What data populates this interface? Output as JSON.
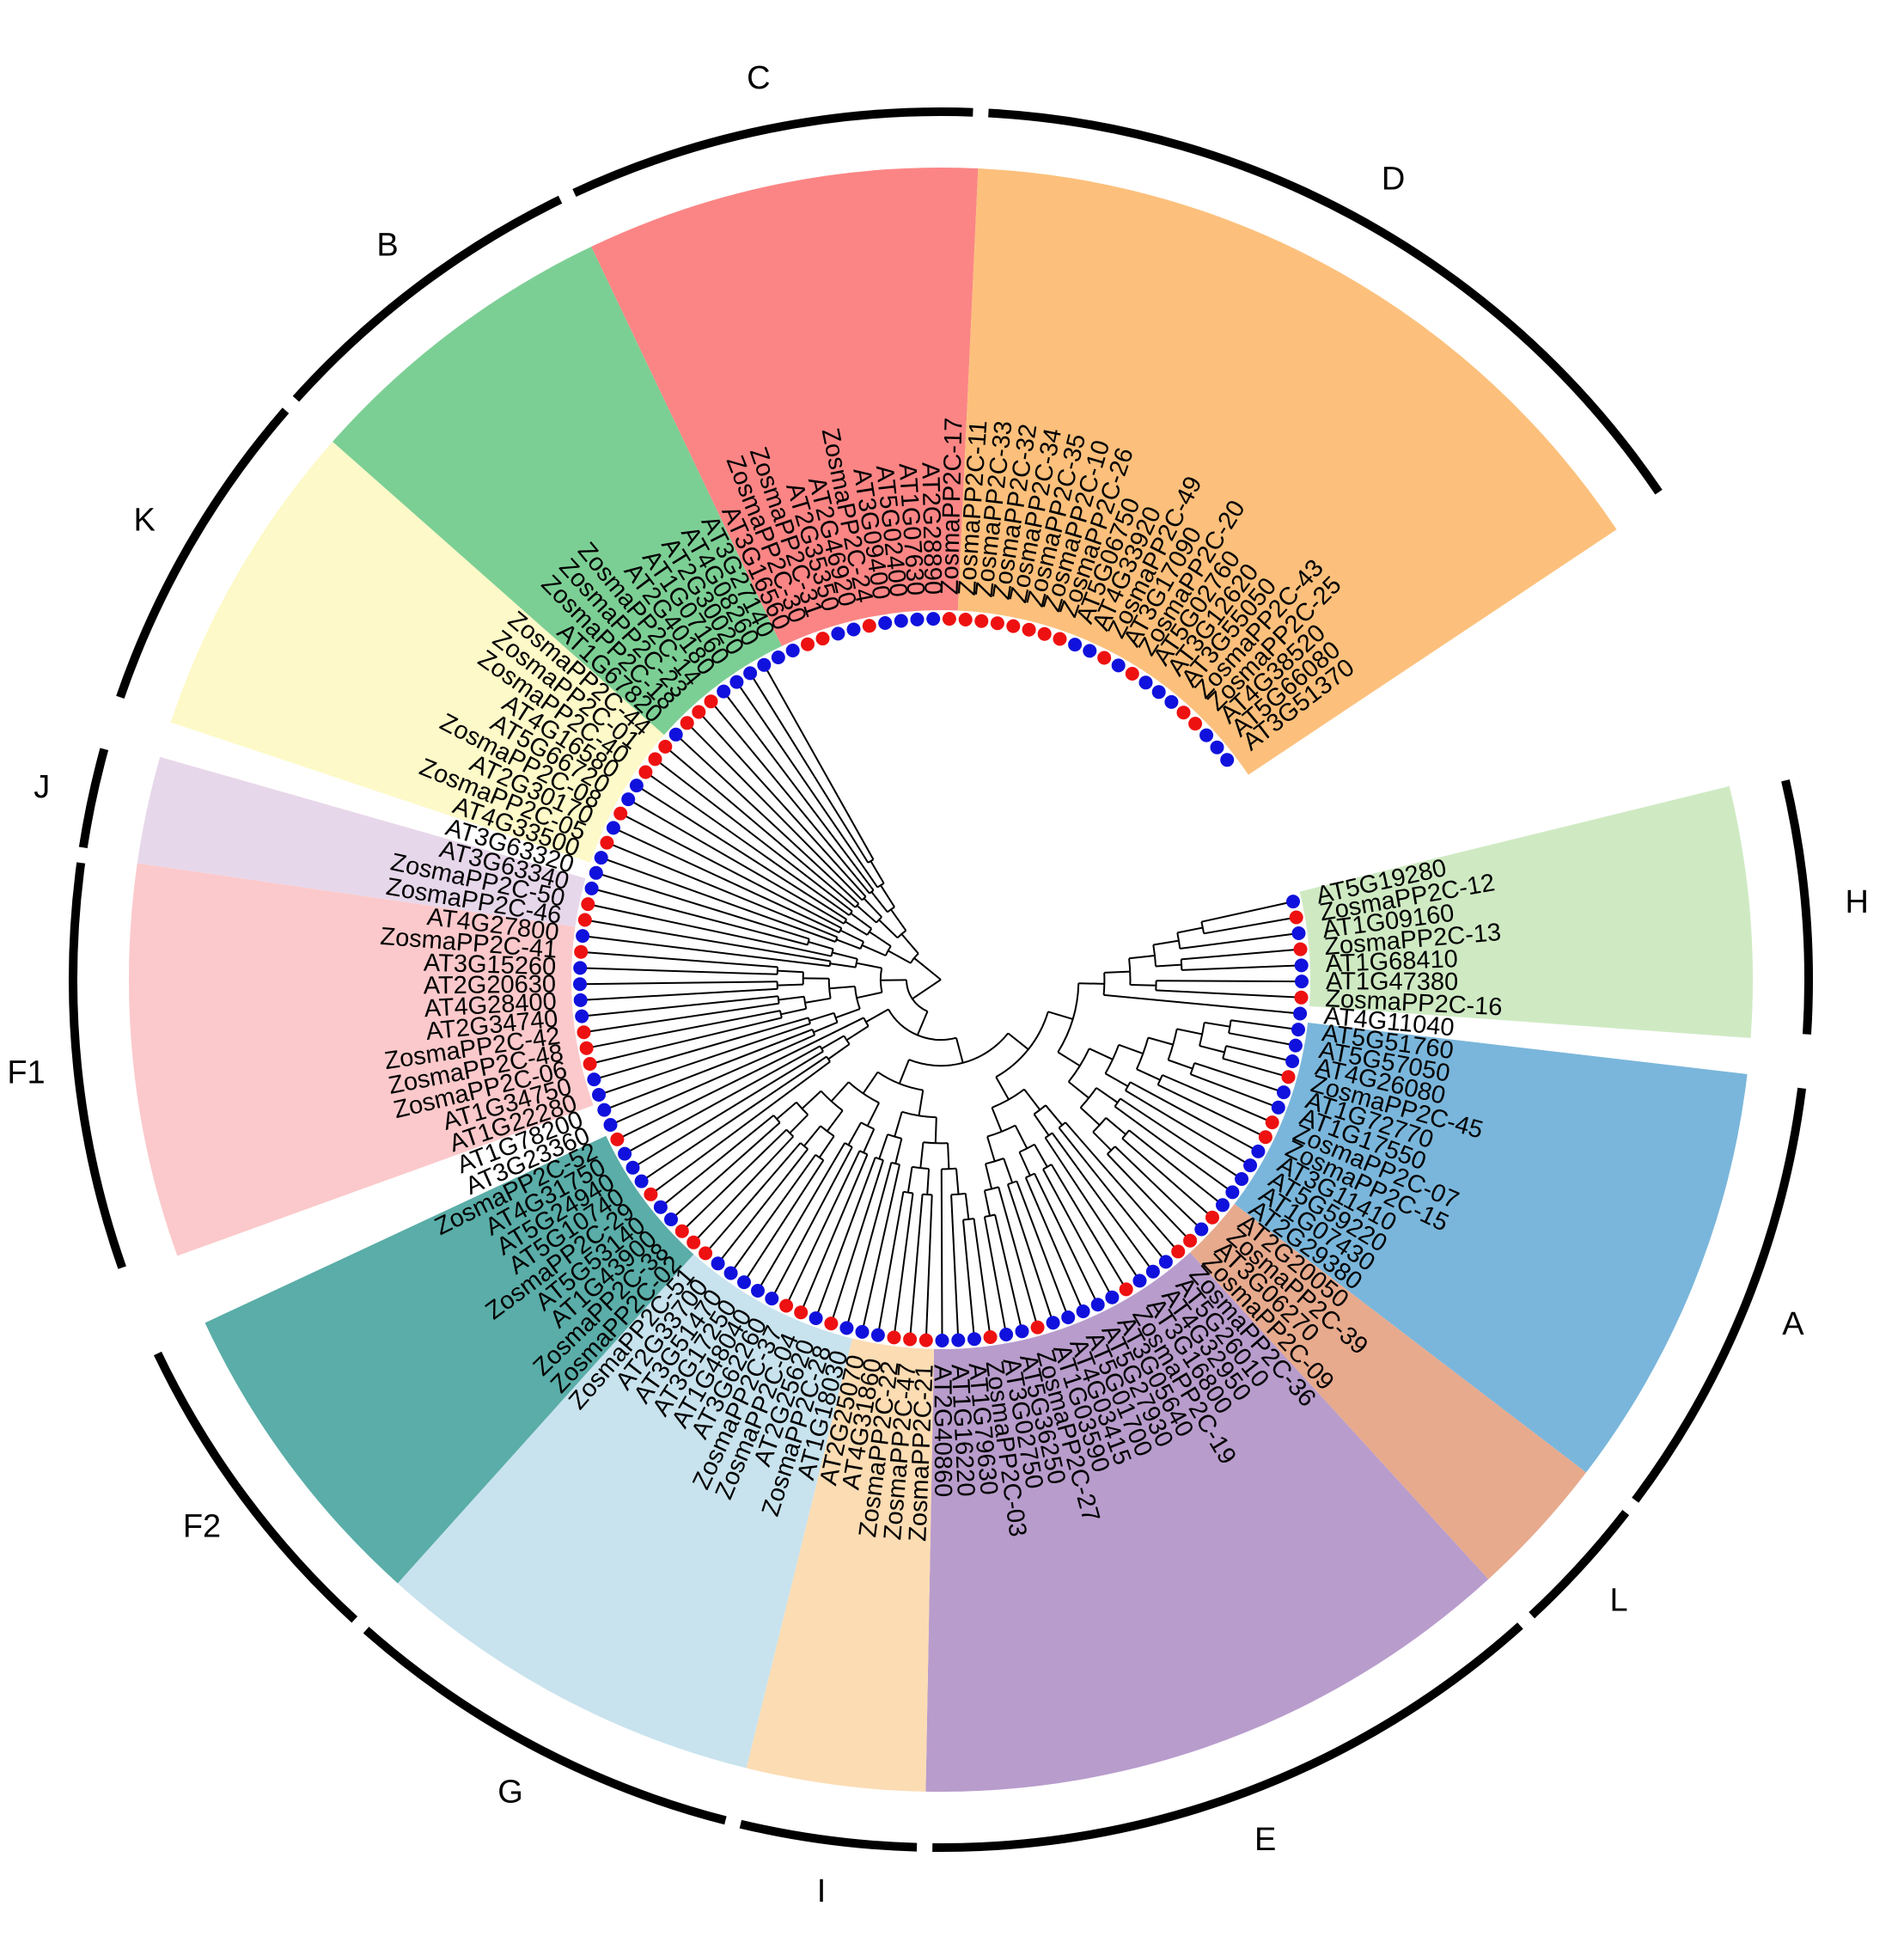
{
  "colors": {
    "zostera": "#ee1111",
    "arabidopsis": "#1111dd",
    "line": "#000000"
  },
  "leaves": [
    {
      "label": "AT5G19280",
      "sp": "at"
    },
    {
      "label": "ZosmaPP2C-12",
      "sp": "zm"
    },
    {
      "label": "AT1G09160",
      "sp": "at"
    },
    {
      "label": "ZosmaPP2C-13",
      "sp": "zm"
    },
    {
      "label": "AT1G68410",
      "sp": "at"
    },
    {
      "label": "AT1G47380",
      "sp": "at"
    },
    {
      "label": "ZosmaPP2C-16",
      "sp": "zm"
    },
    {
      "label": "AT4G11040",
      "sp": "at"
    },
    {
      "label": "AT5G51760",
      "sp": "at"
    },
    {
      "label": "AT5G57050",
      "sp": "at"
    },
    {
      "label": "AT4G26080",
      "sp": "at"
    },
    {
      "label": "ZosmaPP2C-45",
      "sp": "zm"
    },
    {
      "label": "AT1G72770",
      "sp": "at"
    },
    {
      "label": "AT1G17550",
      "sp": "at"
    },
    {
      "label": "ZosmaPP2C-07",
      "sp": "zm"
    },
    {
      "label": "ZosmaPP2C-15",
      "sp": "zm"
    },
    {
      "label": "AT3G11410",
      "sp": "at"
    },
    {
      "label": "AT5G59220",
      "sp": "at"
    },
    {
      "label": "AT1G07430",
      "sp": "at"
    },
    {
      "label": "AT2G29380",
      "sp": "at"
    },
    {
      "label": "AT2G20050",
      "sp": "at"
    },
    {
      "label": "ZosmaPP2C-39",
      "sp": "zm"
    },
    {
      "label": "AT3G06270",
      "sp": "at"
    },
    {
      "label": "ZosmaPP2C-09",
      "sp": "zm"
    },
    {
      "label": "ZosmaPP2C-36",
      "sp": "zm"
    },
    {
      "label": "AT5G26010",
      "sp": "at"
    },
    {
      "label": "AT4G32950",
      "sp": "at"
    },
    {
      "label": "AT3G16800",
      "sp": "at"
    },
    {
      "label": "ZosmaPP2C-19",
      "sp": "zm"
    },
    {
      "label": "AT3G05640",
      "sp": "at"
    },
    {
      "label": "AT5G27930",
      "sp": "at"
    },
    {
      "label": "AT5G01700",
      "sp": "at"
    },
    {
      "label": "AT4G03415",
      "sp": "at"
    },
    {
      "label": "AT1G03590",
      "sp": "at"
    },
    {
      "label": "ZosmaPP2C-27",
      "sp": "zm"
    },
    {
      "label": "AT5G36250",
      "sp": "at"
    },
    {
      "label": "AT3G02750",
      "sp": "at"
    },
    {
      "label": "ZosmaPP2C-03",
      "sp": "zm"
    },
    {
      "label": "AT1G79630",
      "sp": "at"
    },
    {
      "label": "AT1G16220",
      "sp": "at"
    },
    {
      "label": "AT2G40860",
      "sp": "at"
    },
    {
      "label": "ZosmaPP2C-21",
      "sp": "zm"
    },
    {
      "label": "ZosmaPP2C-47",
      "sp": "zm"
    },
    {
      "label": "ZosmaPP2C-22",
      "sp": "zm"
    },
    {
      "label": "AT4G31860",
      "sp": "at"
    },
    {
      "label": "AT2G25070",
      "sp": "at"
    },
    {
      "label": "AT1G18030",
      "sp": "at"
    },
    {
      "label": "ZosmaPP2C-28",
      "sp": "zm"
    },
    {
      "label": "AT2G25620",
      "sp": "at"
    },
    {
      "label": "ZosmaPP2C-04",
      "sp": "zm"
    },
    {
      "label": "ZosmaPP2C-37",
      "sp": "zm"
    },
    {
      "label": "AT3G62260",
      "sp": "at"
    },
    {
      "label": "AT1G48040",
      "sp": "at"
    },
    {
      "label": "AT3G17250",
      "sp": "at"
    },
    {
      "label": "AT3G51470",
      "sp": "at"
    },
    {
      "label": "AT2G33700",
      "sp": "at"
    },
    {
      "label": "ZosmaPP2C-51",
      "sp": "zm"
    },
    {
      "label": "ZosmaPP2C-02",
      "sp": "zm"
    },
    {
      "label": "ZosmaPP2C-38",
      "sp": "zm"
    },
    {
      "label": "AT1G43900",
      "sp": "at"
    },
    {
      "label": "AT5G53140",
      "sp": "at"
    },
    {
      "label": "ZosmaPP2C-29",
      "sp": "zm"
    },
    {
      "label": "AT5G10740",
      "sp": "at"
    },
    {
      "label": "AT5G24940",
      "sp": "at"
    },
    {
      "label": "AT4G31750",
      "sp": "at"
    },
    {
      "label": "ZosmaPP2C-52",
      "sp": "zm"
    },
    {
      "label": "AT3G23360",
      "sp": "at"
    },
    {
      "label": "AT1G78200",
      "sp": "at"
    },
    {
      "label": "AT1G22280",
      "sp": "at"
    },
    {
      "label": "AT1G34750",
      "sp": "at"
    },
    {
      "label": "ZosmaPP2C-06",
      "sp": "zm"
    },
    {
      "label": "ZosmaPP2C-48",
      "sp": "zm"
    },
    {
      "label": "ZosmaPP2C-42",
      "sp": "zm"
    },
    {
      "label": "AT2G34740",
      "sp": "at"
    },
    {
      "label": "AT4G28400",
      "sp": "at"
    },
    {
      "label": "AT2G20630",
      "sp": "at"
    },
    {
      "label": "AT3G15260",
      "sp": "at"
    },
    {
      "label": "ZosmaPP2C-41",
      "sp": "zm"
    },
    {
      "label": "AT4G27800",
      "sp": "at"
    },
    {
      "label": "ZosmaPP2C-46",
      "sp": "zm"
    },
    {
      "label": "ZosmaPP2C-50",
      "sp": "zm"
    },
    {
      "label": "AT3G63340",
      "sp": "at"
    },
    {
      "label": "AT3G63320",
      "sp": "at"
    },
    {
      "label": "AT4G33500",
      "sp": "at"
    },
    {
      "label": "ZosmaPP2C-05",
      "sp": "zm"
    },
    {
      "label": "AT2G30170",
      "sp": "at"
    },
    {
      "label": "ZosmaPP2C-08",
      "sp": "zm"
    },
    {
      "label": "AT5G66720",
      "sp": "at"
    },
    {
      "label": "AT4G16580",
      "sp": "at"
    },
    {
      "label": "ZosmaPP2C-40",
      "sp": "zm"
    },
    {
      "label": "ZosmaPP2C-01",
      "sp": "zm"
    },
    {
      "label": "ZosmaPP2C-44",
      "sp": "zm"
    },
    {
      "label": "AT1G67820",
      "sp": "at"
    },
    {
      "label": "ZosmaPP2C-18",
      "sp": "zm"
    },
    {
      "label": "ZosmaPP2C-23",
      "sp": "zm"
    },
    {
      "label": "ZosmaPP2C-14",
      "sp": "zm"
    },
    {
      "label": "AT2G40180",
      "sp": "at"
    },
    {
      "label": "AT1G07160",
      "sp": "at"
    },
    {
      "label": "AT2G30020",
      "sp": "at"
    },
    {
      "label": "AT4G08260",
      "sp": "at"
    },
    {
      "label": "AT3G27140",
      "sp": "at"
    },
    {
      "label": "AT3G16560",
      "sp": "at"
    },
    {
      "label": "ZosmaPP2C-30",
      "sp": "zm"
    },
    {
      "label": "ZosmaPP2C-31",
      "sp": "zm"
    },
    {
      "label": "AT2G35350",
      "sp": "at"
    },
    {
      "label": "AT2G46920",
      "sp": "at"
    },
    {
      "label": "ZosmaPP2C-24",
      "sp": "zm"
    },
    {
      "label": "AT3G09400",
      "sp": "at"
    },
    {
      "label": "AT5G02400",
      "sp": "at"
    },
    {
      "label": "AT1G07630",
      "sp": "at"
    },
    {
      "label": "AT2G28890",
      "sp": "at"
    },
    {
      "label": "ZosmaPP2C-17",
      "sp": "zm"
    },
    {
      "label": "ZosmaPP2C-11",
      "sp": "zm"
    },
    {
      "label": "ZosmaPP2C-33",
      "sp": "zm"
    },
    {
      "label": "ZosmaPP2C-32",
      "sp": "zm"
    },
    {
      "label": "ZosmaPP2C-34",
      "sp": "zm"
    },
    {
      "label": "ZosmaPP2C-35",
      "sp": "zm"
    },
    {
      "label": "ZosmaPP2C-10",
      "sp": "zm"
    },
    {
      "label": "ZosmaPP2C-26",
      "sp": "zm"
    },
    {
      "label": "AT5G06750",
      "sp": "at"
    },
    {
      "label": "AT4G33920",
      "sp": "at"
    },
    {
      "label": "ZosmaPP2C-49",
      "sp": "zm"
    },
    {
      "label": "AT3G17090",
      "sp": "at"
    },
    {
      "label": "ZosmaPP2C-20",
      "sp": "zm"
    },
    {
      "label": "AT5G02760",
      "sp": "at"
    },
    {
      "label": "AT3G12620",
      "sp": "at"
    },
    {
      "label": "AT3G55050",
      "sp": "at"
    },
    {
      "label": "ZosmaPP2C-43",
      "sp": "zm"
    },
    {
      "label": "ZosmaPP2C-25",
      "sp": "zm"
    },
    {
      "label": "AT4G38520",
      "sp": "at"
    },
    {
      "label": "AT5G66080",
      "sp": "at"
    },
    {
      "label": "AT3G51370",
      "sp": "at"
    }
  ],
  "clades": [
    {
      "name": "H",
      "first": 0,
      "last": 6,
      "shade": true,
      "color": "#cfeac3"
    },
    {
      "name": "A",
      "first": 8,
      "last": 19,
      "shade": true,
      "color": "#7ab6db"
    },
    {
      "name": "L",
      "first": 20,
      "last": 23,
      "shade": true,
      "color": "#e7aa8d"
    },
    {
      "name": "E",
      "first": 24,
      "last": 40,
      "shade": true,
      "color": "#b89ccc"
    },
    {
      "name": "I",
      "first": 41,
      "last": 45,
      "shade": true,
      "color": "#fcdcb3"
    },
    {
      "name": "G",
      "first": 46,
      "last": 56,
      "shade": true,
      "color": "#c8e3ee"
    },
    {
      "name": "F2",
      "first": 57,
      "last": 65,
      "shade": true,
      "color": "#5aada8"
    },
    {
      "name": "F1",
      "first": 68,
      "last": 78,
      "shade": true,
      "color": "#fbc9cb"
    },
    {
      "name": "J",
      "first": 79,
      "last": 81,
      "shade": true,
      "color": "#e7d7ea"
    },
    {
      "name": "K",
      "first": 83,
      "last": 91,
      "shade": true,
      "color": "#fdf9c8"
    },
    {
      "name": "B",
      "first": 92,
      "last": 100,
      "shade": true,
      "color": "#7ccf94"
    },
    {
      "name": "C",
      "first": 101,
      "last": 111,
      "shade": true,
      "color": "#fb8585"
    },
    {
      "name": "D",
      "first": 112,
      "last": 132,
      "shade": true,
      "color": "#fcc07c"
    }
  ],
  "tree": "(((((((((((0,1),2),(3,4)),(5,6)),7),((((((8,9),(10,11)),(12,13)),(14,15)),(16,17)),((18,19),((20,21),(22,23))))),(((24,25),(26,27)),(((28,29),(30,31)),((32,33),(34,(35,36)))))),((((((37,38),39),40),((41,42),(43,44))),((45,46),(47,48))),(((49,50),(51,52)),(((53,54),(55,56)),((57,58),(59,60)))))),(((61,62),(63,64)),65)),((((66,67),(68,69)),(((70,71),(72,73)),((74,75),(76,77)))),((78,79),(80,(81,82))))),((((83,84),(85,86)),((87,88),(89,90))),(((91,92),(93,94)),((95,96),(97,(98,99)))))),(((((100,101),(102,103)),((104,105),(106,107))),((108,109),(110,111))),((((112,113),(114,115)),((116,117),(118,119))),(((120,121),(122,123)),(((124,125),(126,127)),((128,129),(130,(131,132))))))));"
}
